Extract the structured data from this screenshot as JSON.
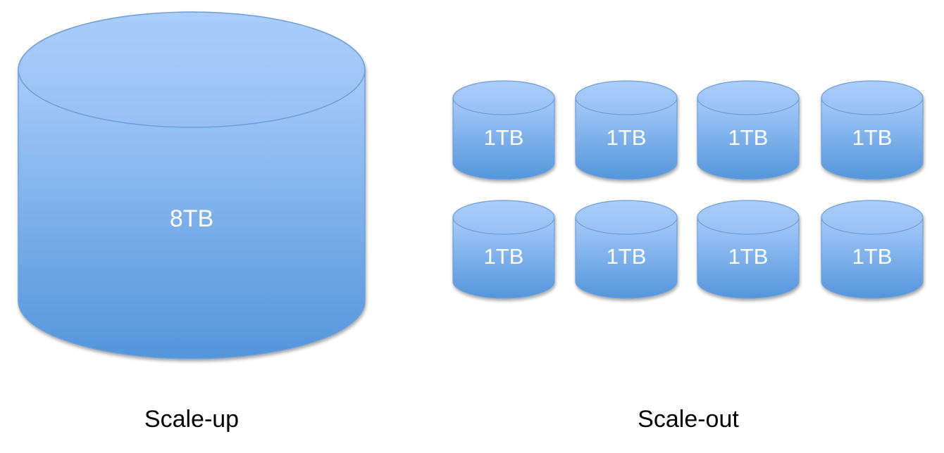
{
  "scale_up": {
    "label": "Scale-up",
    "disk_label": "8TB"
  },
  "scale_out": {
    "label": "Scale-out",
    "disks": [
      {
        "label": "1TB"
      },
      {
        "label": "1TB"
      },
      {
        "label": "1TB"
      },
      {
        "label": "1TB"
      },
      {
        "label": "1TB"
      },
      {
        "label": "1TB"
      },
      {
        "label": "1TB"
      },
      {
        "label": "1TB"
      }
    ]
  },
  "colors": {
    "cylinder_top": "#a7cbfa",
    "cylinder_bottom": "#5495db",
    "cylinder_stroke": "#6e9ed6",
    "disk_text": "#ffffff",
    "caption_text": "#000000"
  }
}
